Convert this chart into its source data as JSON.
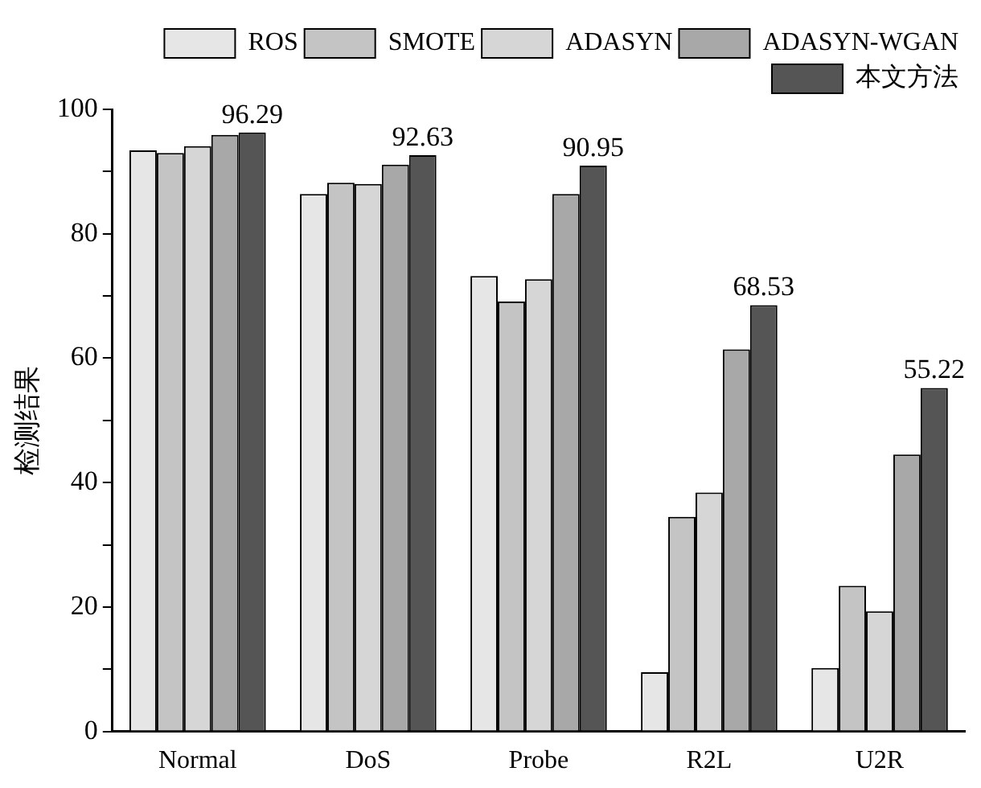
{
  "chart_data": {
    "type": "bar",
    "ylabel": "检测结果",
    "categories": [
      "Normal",
      "DoS",
      "Probe",
      "R2L",
      "U2R"
    ],
    "series": [
      {
        "name": "ROS",
        "color": "#e6e6e6",
        "values": [
          93.4,
          86.4,
          73.2,
          9.5,
          10.2
        ]
      },
      {
        "name": "SMOTE",
        "color": "#c4c4c4",
        "values": [
          93.0,
          88.2,
          69.1,
          34.5,
          23.4
        ]
      },
      {
        "name": "ADASYN",
        "color": "#d6d6d6",
        "values": [
          94.1,
          88.0,
          72.7,
          38.4,
          19.3
        ]
      },
      {
        "name": "ADASYN-WGAN",
        "color": "#a8a8a8",
        "values": [
          95.9,
          91.1,
          86.4,
          61.4,
          44.5
        ]
      },
      {
        "name": "本文方法",
        "color": "#555555",
        "values": [
          96.29,
          92.63,
          90.95,
          68.53,
          55.22
        ],
        "value_labels": [
          "96.29",
          "92.63",
          "90.95",
          "68.53",
          "55.22"
        ]
      }
    ],
    "ylim": [
      0,
      100
    ],
    "yticks": [
      0,
      {
        "value": 10,
        "label": null
      },
      20,
      {
        "value": 30,
        "label": null
      },
      40,
      {
        "value": 50,
        "label": null
      },
      60,
      {
        "value": 70,
        "label": null
      },
      80,
      {
        "value": 90,
        "label": null
      },
      100
    ],
    "grid": false,
    "legend": "top right"
  }
}
